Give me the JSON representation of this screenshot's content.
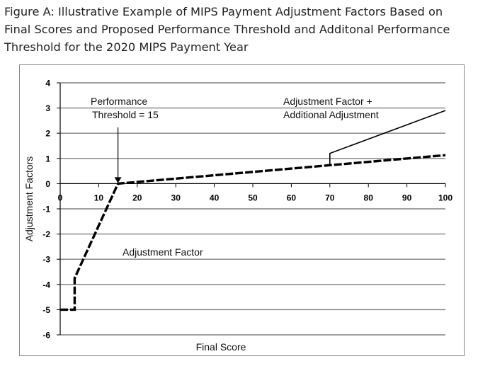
{
  "title": {
    "lines": [
      "Figure A: Illustrative Example of MIPS Payment Adjustment Factors Based on",
      "Final Scores and Proposed Performance Threshold and Additonal Performance",
      "Threshold for the 2020 MIPS Payment Year"
    ]
  },
  "chart_data": {
    "type": "line",
    "title": "Figure A: Illustrative Example of MIPS Payment Adjustment Factors Based on Final Scores and Proposed Performance Threshold and Additonal Performance Threshold for the 2020 MIPS Payment Year",
    "xlabel": "Final Score",
    "ylabel": "Adjustment Factors",
    "xlim": [
      0,
      100
    ],
    "ylim": [
      -6,
      4
    ],
    "x_ticks": [
      0,
      10,
      20,
      30,
      40,
      50,
      60,
      70,
      80,
      90,
      100
    ],
    "y_ticks": [
      -6,
      -5,
      -4,
      -3,
      -2,
      -1,
      0,
      1,
      2,
      3,
      4
    ],
    "grid": "horizontal",
    "series": [
      {
        "name": "Adjustment Factor",
        "style": "dashed",
        "points": [
          [
            0,
            -5
          ],
          [
            3.75,
            -5
          ],
          [
            3.75,
            -3.75
          ],
          [
            15,
            0
          ],
          [
            100,
            1.13
          ]
        ]
      },
      {
        "name": "Adjustment Factor + Additional Adjustment",
        "style": "solid",
        "points": [
          [
            70,
            0.7
          ],
          [
            70,
            1.2
          ],
          [
            100,
            2.9
          ]
        ]
      }
    ],
    "annotations": [
      {
        "id": "threshold",
        "text_lines": [
          "Performance",
          "Threshold = 15"
        ],
        "x": 15,
        "y": 0
      },
      {
        "id": "adj_factor",
        "text": "Adjustment Factor"
      },
      {
        "id": "adj_factor_plus",
        "text_lines": [
          "Adjustment Factor +",
          "Additional Adjustment"
        ]
      }
    ],
    "colors": {
      "line": "#000000",
      "grid": "#808080"
    }
  }
}
